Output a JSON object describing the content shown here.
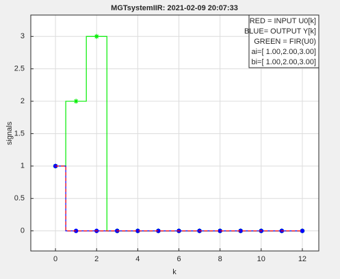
{
  "chart_data": {
    "type": "stairs",
    "title": "MGTsystemIIR: 2021-02-09 20:07:33",
    "xlabel": "k",
    "ylabel": "signals",
    "x": [
      0,
      1,
      2,
      3,
      4,
      5,
      6,
      7,
      8,
      9,
      10,
      11,
      12
    ],
    "series": [
      {
        "color": "#00ee00",
        "marker": "*",
        "line_style": "solid",
        "values": [
          1,
          2,
          3,
          0,
          0,
          0,
          0,
          0,
          0,
          0,
          0,
          0,
          0
        ]
      },
      {
        "color": "#0000ff",
        "marker": "o",
        "line_style": "solid",
        "values": [
          1,
          0,
          0,
          0,
          0,
          0,
          0,
          0,
          0,
          0,
          0,
          0,
          0
        ]
      },
      {
        "color": "#ff0000",
        "marker": "none",
        "line_style": "dashed",
        "values": [
          1,
          0,
          0,
          0,
          0,
          0,
          0,
          0,
          0,
          0,
          0,
          0,
          0
        ]
      }
    ],
    "legend_lines": [
      "RED = INPUT U0[k]",
      "BLUE= OUTPUT Y[k]",
      "GREEN = FIR(U0)",
      "ai=[ 1.00,2.00,3.00]",
      "bi=[ 1.00,2.00,3.00]"
    ],
    "legend_position": "top-right",
    "xlim": [
      -1.2,
      12.8
    ],
    "ylim": [
      -0.31,
      3.33
    ],
    "xticks": [
      0,
      2,
      4,
      6,
      8,
      10,
      12
    ],
    "yticks": [
      0,
      0.5,
      1,
      1.5,
      2,
      2.5,
      3
    ],
    "grid": true
  }
}
